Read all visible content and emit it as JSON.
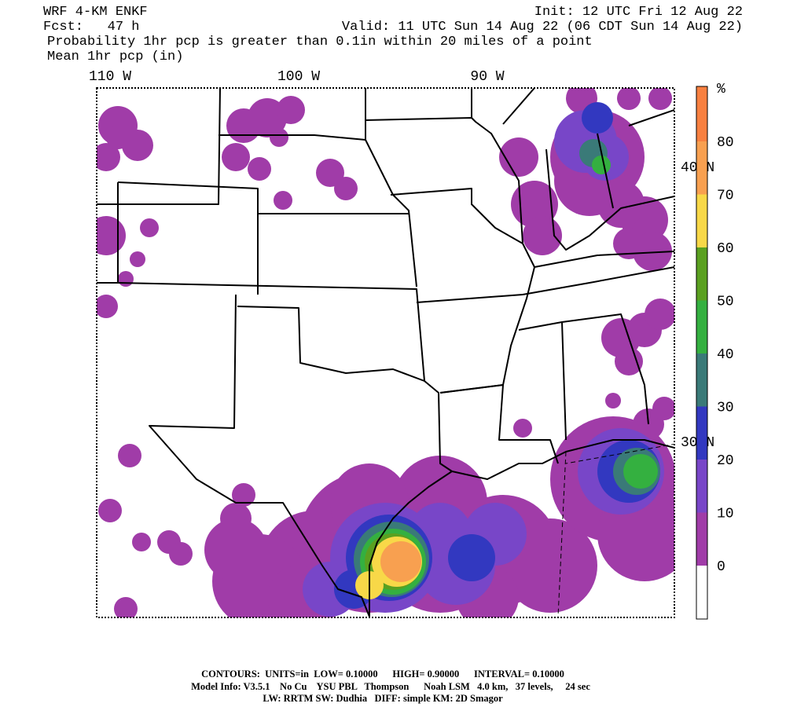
{
  "header": {
    "model": "WRF 4-KM ENKF",
    "forecast": "Fcst:   47 h",
    "init": "Init: 12 UTC Fri 12 Aug 22",
    "valid": "Valid: 11 UTC Sun 14 Aug 22 (06 CDT Sun 14 Aug 22)",
    "line1": "Probability 1hr pcp is greater than 0.1in within 20 miles of a point",
    "line2": "Mean 1hr pcp (in)"
  },
  "map": {
    "lon_labels": [
      "110 W",
      "100 W",
      "90 W"
    ],
    "lat_labels": [
      "40 N",
      "30 N"
    ]
  },
  "colorbar": {
    "unit": "%",
    "levels": [
      0,
      10,
      20,
      30,
      40,
      50,
      60,
      70,
      80
    ],
    "colors": [
      "#ffffff",
      "#a03ca8",
      "#7846c8",
      "#3238c0",
      "#3a7a78",
      "#34b040",
      "#5aa020",
      "#f8d848",
      "#f8a050",
      "#f88040"
    ]
  },
  "footer": {
    "contours": "CONTOURS:  UNITS=in  LOW= 0.10000      HIGH= 0.90000      INTERVAL= 0.10000",
    "model_info": "Model Info: V3.5.1    No Cu    YSU PBL   Thompson      Noah LSM   4.0 km,   37 levels,     24 sec",
    "physics": "LW: RRTM SW: Dudhia   DIFF: simple KM: 2D Smagor"
  }
}
